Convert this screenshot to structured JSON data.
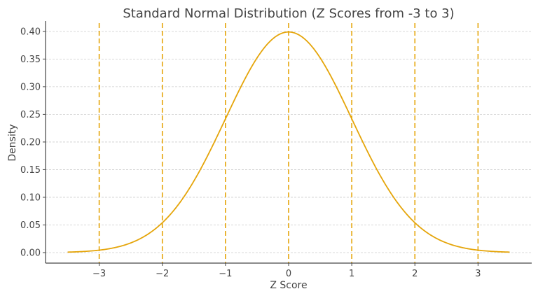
{
  "chart_data": {
    "type": "line",
    "title": "Standard Normal Distribution (Z Scores from -3 to 3)",
    "xlabel": "Z Score",
    "ylabel": "Density",
    "xlim": [
      -3.85,
      3.85
    ],
    "ylim": [
      -0.019,
      0.4188
    ],
    "x_ticks": [
      -3,
      -2,
      -1,
      0,
      1,
      2,
      3
    ],
    "x_tick_labels": [
      "−3",
      "−2",
      "−1",
      "0",
      "1",
      "2",
      "3"
    ],
    "y_ticks": [
      0,
      0.05,
      0.1,
      0.15,
      0.2,
      0.25,
      0.3,
      0.35,
      0.4
    ],
    "y_tick_labels": [
      "0.00",
      "0.05",
      "0.10",
      "0.15",
      "0.20",
      "0.25",
      "0.30",
      "0.35",
      "0.40"
    ],
    "grid": "horizontal dashed",
    "series": [
      {
        "function": "standard normal pdf",
        "x_range": [
          -3.5,
          3.5
        ],
        "color": "#e5a50a"
      }
    ],
    "vertical_lines": {
      "x": [
        -3,
        -2,
        -1,
        0,
        1,
        2,
        3
      ],
      "style": "dashed",
      "color": "#e5a50a"
    }
  }
}
